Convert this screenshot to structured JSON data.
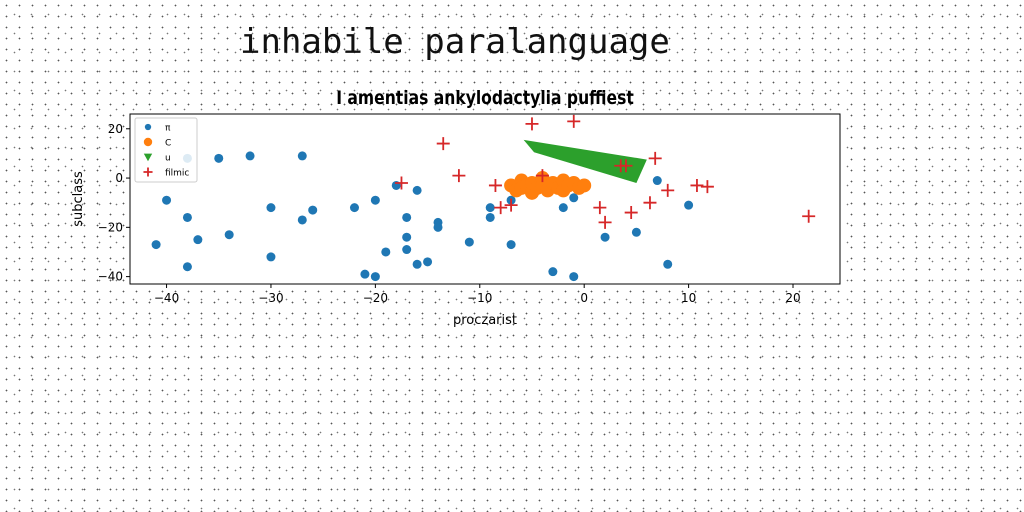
{
  "page": {
    "title": "inhabile paralanguage"
  },
  "chart_data": {
    "type": "scatter",
    "title": "I amentias ankylodactylia puffiest",
    "xlabel": "proczarist",
    "ylabel": "subclass",
    "xlim": [
      -43.5,
      24.5
    ],
    "ylim": [
      -43,
      26
    ],
    "xticks": [
      -40,
      -30,
      -20,
      -10,
      0,
      10,
      20
    ],
    "yticks": [
      -40,
      -20,
      0,
      20
    ],
    "grid": false,
    "legend": {
      "position": "top-left"
    },
    "series": [
      {
        "name": "π",
        "marker": "circle",
        "color": "#1f77b4",
        "points": [
          [
            -41,
            -27
          ],
          [
            -40,
            -9
          ],
          [
            -38,
            -16
          ],
          [
            -38,
            8
          ],
          [
            -38,
            -36
          ],
          [
            -37,
            -25
          ],
          [
            -35,
            8
          ],
          [
            -34,
            -23
          ],
          [
            -32,
            9
          ],
          [
            -30,
            -12
          ],
          [
            -30,
            -32
          ],
          [
            -27,
            9
          ],
          [
            -27,
            -17
          ],
          [
            -26,
            -13
          ],
          [
            -22,
            -12
          ],
          [
            -21,
            -39
          ],
          [
            -20,
            -40
          ],
          [
            -20,
            -9
          ],
          [
            -19,
            -30
          ],
          [
            -18,
            -3
          ],
          [
            -17,
            -16
          ],
          [
            -17,
            -24
          ],
          [
            -17,
            -29
          ],
          [
            -16,
            -5
          ],
          [
            -16,
            -35
          ],
          [
            -15,
            -34
          ],
          [
            -14,
            -18
          ],
          [
            -14,
            -20
          ],
          [
            -11,
            -26
          ],
          [
            -9,
            -12
          ],
          [
            -9,
            -16
          ],
          [
            -7,
            -9
          ],
          [
            -7,
            -27
          ],
          [
            -4,
            0
          ],
          [
            -3,
            -38
          ],
          [
            -2,
            -12
          ],
          [
            -1,
            -8
          ],
          [
            -1,
            -40
          ],
          [
            2,
            -24
          ],
          [
            5,
            -22
          ],
          [
            7,
            -1
          ],
          [
            8,
            -35
          ],
          [
            10,
            -11
          ]
        ]
      },
      {
        "name": "C",
        "marker": "circle-large",
        "color": "#ff7f0e",
        "points": [
          [
            -7,
            -3
          ],
          [
            -6.5,
            -5
          ],
          [
            -6,
            -1
          ],
          [
            -6,
            -4
          ],
          [
            -5.5,
            -3
          ],
          [
            -5,
            -6
          ],
          [
            -5,
            -2
          ],
          [
            -4.5,
            -4
          ],
          [
            -4,
            0
          ],
          [
            -4,
            -3
          ],
          [
            -3.5,
            -5
          ],
          [
            -3,
            -2
          ],
          [
            -2.5,
            -4
          ],
          [
            -2,
            -1
          ],
          [
            -2,
            -5
          ],
          [
            -1.5,
            -3
          ],
          [
            -1,
            -2
          ],
          [
            -0.5,
            -4
          ],
          [
            0,
            -3
          ]
        ]
      },
      {
        "name": "u",
        "marker": "triangle-down",
        "color": "#2ca02c",
        "band": [
          [
            -5.8,
            15.5
          ],
          [
            -4.8,
            10.5
          ],
          [
            5,
            -2
          ],
          [
            6,
            7.5
          ]
        ]
      },
      {
        "name": "filmic",
        "marker": "plus",
        "color": "#d62728",
        "points": [
          [
            -17.5,
            -2
          ],
          [
            -13.5,
            14
          ],
          [
            -12,
            1
          ],
          [
            -8.5,
            -3
          ],
          [
            -8,
            -12
          ],
          [
            -7,
            -11
          ],
          [
            -5,
            22
          ],
          [
            -4,
            1
          ],
          [
            -1,
            23
          ],
          [
            1.5,
            -12
          ],
          [
            2,
            -18
          ],
          [
            3.5,
            5
          ],
          [
            4,
            5
          ],
          [
            4.5,
            -14
          ],
          [
            6.3,
            -10
          ],
          [
            6.8,
            8
          ],
          [
            8,
            -5
          ],
          [
            10.8,
            -3
          ],
          [
            11.8,
            -3.5
          ],
          [
            21.5,
            -15.5
          ]
        ]
      }
    ]
  }
}
